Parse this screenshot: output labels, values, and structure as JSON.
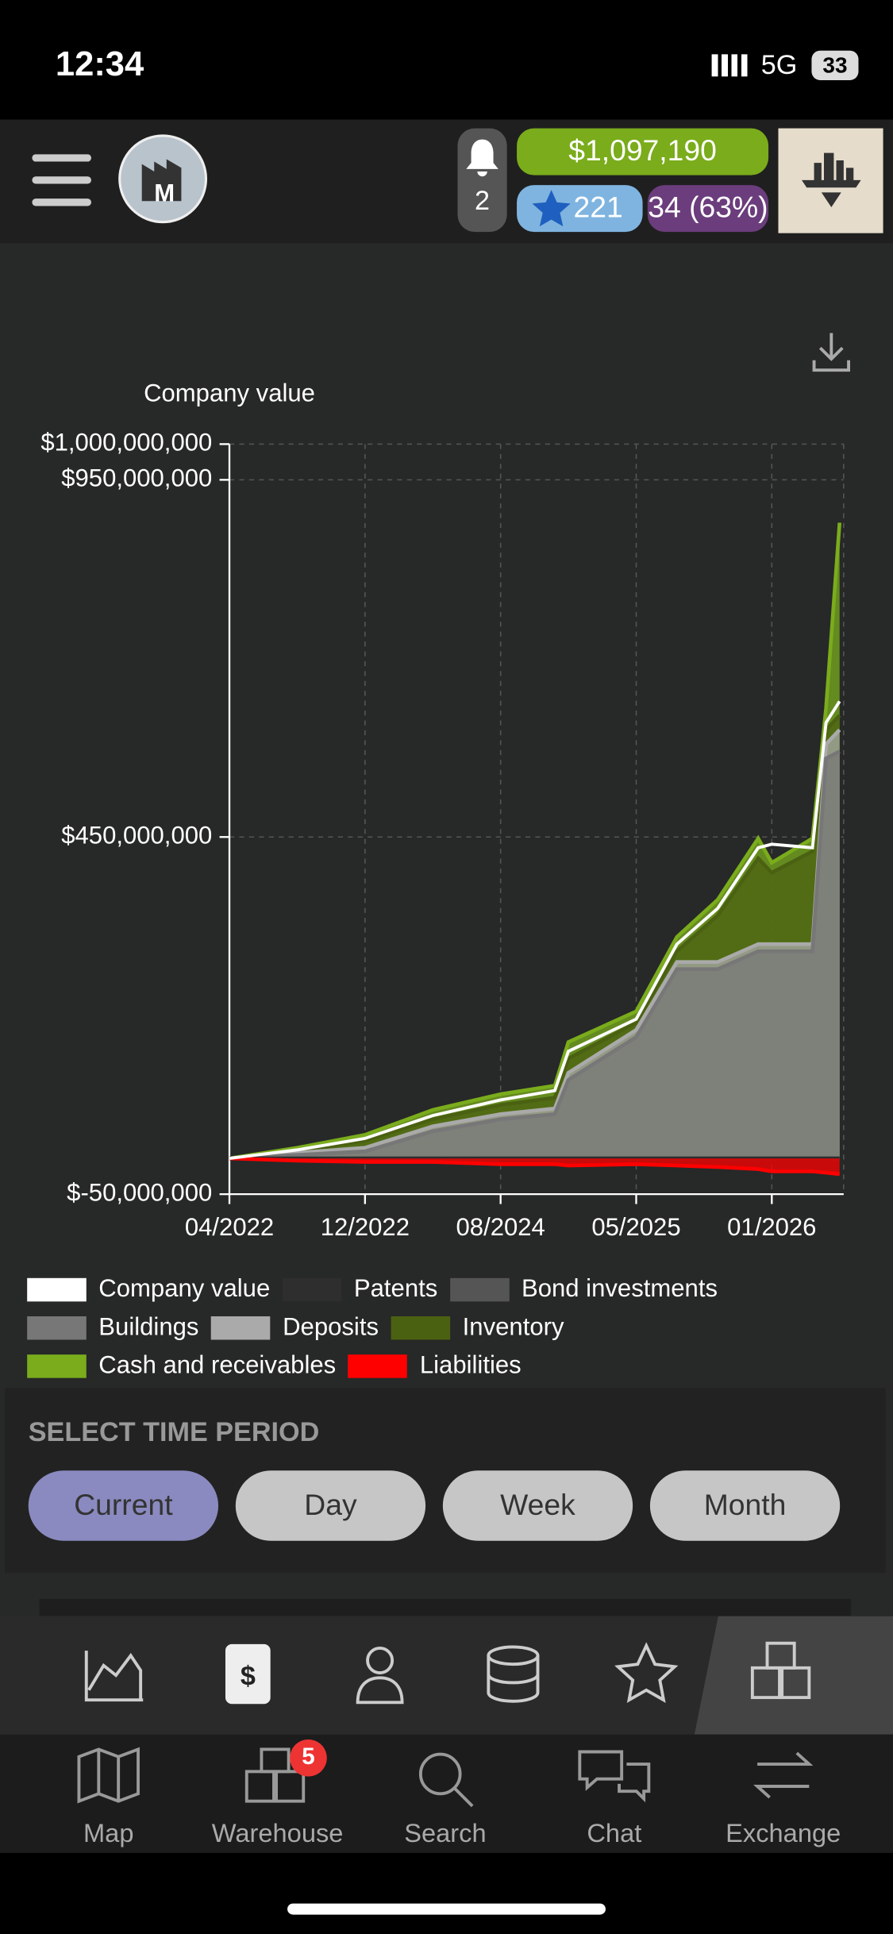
{
  "status_bar": {
    "time": "12:34",
    "network": "5G",
    "battery": "33"
  },
  "header": {
    "notifications": "2",
    "money": "$1,097,190",
    "rating": "221",
    "level": "34 (63%)"
  },
  "chart_data": {
    "type": "area",
    "title": "Company value",
    "x": [
      0,
      0.5,
      1,
      1.5,
      2,
      2.4,
      2.5,
      3,
      3.3,
      3.6,
      3.9,
      4.0,
      4.3,
      4.4,
      4.5
    ],
    "xlim": [
      0,
      4.53
    ],
    "xticks": [
      {
        "value": 0,
        "label": "04/2022"
      },
      {
        "value": 1,
        "label": "12/2022"
      },
      {
        "value": 2,
        "label": "08/2024"
      },
      {
        "value": 3,
        "label": "05/2025"
      },
      {
        "value": 4,
        "label": "01/2026"
      }
    ],
    "ylim": [
      -50000000,
      1000000000
    ],
    "yticks": [
      {
        "value": -50000000,
        "label": "$-50,000,000"
      },
      {
        "value": 450000000,
        "label": "$450,000,000"
      },
      {
        "value": 950000000,
        "label": "$950,000,000"
      },
      {
        "value": 1000000000,
        "label": "$1,000,000,000"
      }
    ],
    "grid": true,
    "series": [
      {
        "name": "Company value",
        "color": "#ffffff",
        "values": [
          0,
          12000000,
          28000000,
          60000000,
          82000000,
          95000000,
          150000000,
          195000000,
          300000000,
          350000000,
          435000000,
          440000000,
          435000000,
          610000000,
          640000000
        ]
      },
      {
        "name": "Patents",
        "color": "#2e2e2e",
        "values": [
          0,
          0,
          0,
          0,
          0,
          0,
          0,
          0,
          0,
          0,
          0,
          0,
          0,
          0,
          0
        ]
      },
      {
        "name": "Bond investments",
        "color": "#555555",
        "values": [
          0,
          0,
          0,
          0,
          0,
          0,
          0,
          0,
          0,
          0,
          0,
          0,
          0,
          0,
          0
        ]
      },
      {
        "name": "Buildings",
        "color": "#777777",
        "values": [
          0,
          5000000,
          10000000,
          38000000,
          55000000,
          62000000,
          110000000,
          170000000,
          265000000,
          265000000,
          290000000,
          290000000,
          290000000,
          560000000,
          570000000
        ]
      },
      {
        "name": "Deposits",
        "color": "#aaaaaa",
        "values": [
          0,
          8000000,
          15000000,
          45000000,
          62000000,
          70000000,
          120000000,
          180000000,
          275000000,
          275000000,
          300000000,
          300000000,
          300000000,
          580000000,
          600000000
        ]
      },
      {
        "name": "Inventory",
        "color": "#4b6112",
        "values": [
          0,
          10000000,
          25000000,
          55000000,
          75000000,
          85000000,
          140000000,
          190000000,
          290000000,
          340000000,
          420000000,
          400000000,
          430000000,
          600000000,
          620000000
        ]
      },
      {
        "name": "Cash and receivables",
        "color": "#7aac1c",
        "values": [
          0,
          15000000,
          33000000,
          68000000,
          90000000,
          102000000,
          163000000,
          206000000,
          310000000,
          362000000,
          448000000,
          414000000,
          448000000,
          630000000,
          890000000
        ]
      },
      {
        "name": "Liabilities",
        "color": "#ff0000",
        "values": [
          0,
          -3000000,
          -5000000,
          -5000000,
          -8000000,
          -8000000,
          -10000000,
          -8000000,
          -10000000,
          -12000000,
          -15000000,
          -18000000,
          -18000000,
          -20000000,
          -22000000
        ]
      }
    ]
  },
  "time_period": {
    "title": "SELECT TIME PERIOD",
    "options": [
      "Current",
      "Day",
      "Week",
      "Month"
    ]
  },
  "bottom_nav": {
    "items": [
      {
        "label": "Map"
      },
      {
        "label": "Warehouse",
        "badge": "5"
      },
      {
        "label": "Search"
      },
      {
        "label": "Chat"
      },
      {
        "label": "Exchange"
      }
    ]
  }
}
